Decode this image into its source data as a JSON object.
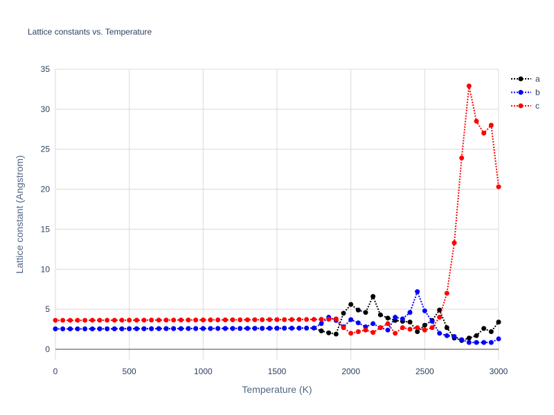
{
  "chart_data": {
    "type": "line",
    "title": "Lattice constants vs. Temperature",
    "xlabel": "Temperature (K)",
    "ylabel": "Lattice constant (Angstrom)",
    "xlim": [
      0,
      3000
    ],
    "ylim": [
      -1.3,
      35
    ],
    "xticks": [
      0,
      500,
      1000,
      1500,
      2000,
      2500,
      3000
    ],
    "yticks": [
      0,
      5,
      10,
      15,
      20,
      25,
      30,
      35
    ],
    "grid": true,
    "legend_position": "top-right",
    "x": [
      0,
      50,
      100,
      150,
      200,
      250,
      300,
      350,
      400,
      450,
      500,
      550,
      600,
      650,
      700,
      750,
      800,
      850,
      900,
      950,
      1000,
      1050,
      1100,
      1150,
      1200,
      1250,
      1300,
      1350,
      1400,
      1450,
      1500,
      1550,
      1600,
      1650,
      1700,
      1750,
      1800,
      1850,
      1900,
      1950,
      2000,
      2050,
      2100,
      2150,
      2200,
      2250,
      2300,
      2350,
      2400,
      2450,
      2500,
      2550,
      2600,
      2650,
      2700,
      2750,
      2800,
      2850,
      2900,
      2950,
      3000
    ],
    "series": [
      {
        "name": "a",
        "color": "#000000",
        "values": [
          2.55,
          2.55,
          2.55,
          2.55,
          2.55,
          2.55,
          2.56,
          2.56,
          2.56,
          2.56,
          2.57,
          2.57,
          2.57,
          2.57,
          2.58,
          2.58,
          2.58,
          2.58,
          2.59,
          2.59,
          2.59,
          2.59,
          2.6,
          2.6,
          2.6,
          2.6,
          2.61,
          2.61,
          2.61,
          2.62,
          2.62,
          2.63,
          2.63,
          2.64,
          2.64,
          2.65,
          2.3,
          2.05,
          1.9,
          4.5,
          5.6,
          4.9,
          4.6,
          6.6,
          4.3,
          3.9,
          3.6,
          3.5,
          3.4,
          2.2,
          3.0,
          3.6,
          4.9,
          2.7,
          1.4,
          1.1,
          1.4,
          1.7,
          2.6,
          2.2,
          3.4
        ]
      },
      {
        "name": "b",
        "color": "#0000ff",
        "values": [
          2.55,
          2.55,
          2.55,
          2.55,
          2.55,
          2.55,
          2.56,
          2.56,
          2.56,
          2.56,
          2.57,
          2.57,
          2.57,
          2.57,
          2.58,
          2.58,
          2.58,
          2.58,
          2.59,
          2.59,
          2.59,
          2.59,
          2.6,
          2.6,
          2.6,
          2.6,
          2.61,
          2.61,
          2.61,
          2.62,
          2.62,
          2.63,
          2.63,
          2.64,
          2.64,
          2.65,
          3.2,
          4.0,
          3.6,
          2.8,
          3.7,
          3.3,
          2.8,
          3.2,
          2.7,
          2.4,
          4.0,
          3.8,
          4.6,
          7.2,
          4.8,
          3.5,
          2.0,
          1.7,
          1.6,
          1.2,
          0.85,
          0.85,
          0.85,
          0.85,
          1.3
        ]
      },
      {
        "name": "c",
        "color": "#ff0000",
        "values": [
          3.62,
          3.62,
          3.62,
          3.62,
          3.62,
          3.63,
          3.63,
          3.63,
          3.63,
          3.64,
          3.64,
          3.64,
          3.64,
          3.65,
          3.65,
          3.65,
          3.65,
          3.66,
          3.66,
          3.66,
          3.66,
          3.67,
          3.67,
          3.67,
          3.68,
          3.68,
          3.68,
          3.69,
          3.69,
          3.7,
          3.7,
          3.7,
          3.71,
          3.72,
          3.72,
          3.73,
          3.74,
          3.75,
          3.8,
          2.7,
          2.0,
          2.2,
          2.4,
          2.1,
          2.7,
          3.2,
          2.0,
          2.7,
          2.5,
          2.7,
          2.4,
          2.7,
          4.0,
          7.0,
          13.3,
          23.9,
          32.9,
          28.5,
          27.0,
          28.0,
          20.3
        ]
      }
    ]
  }
}
